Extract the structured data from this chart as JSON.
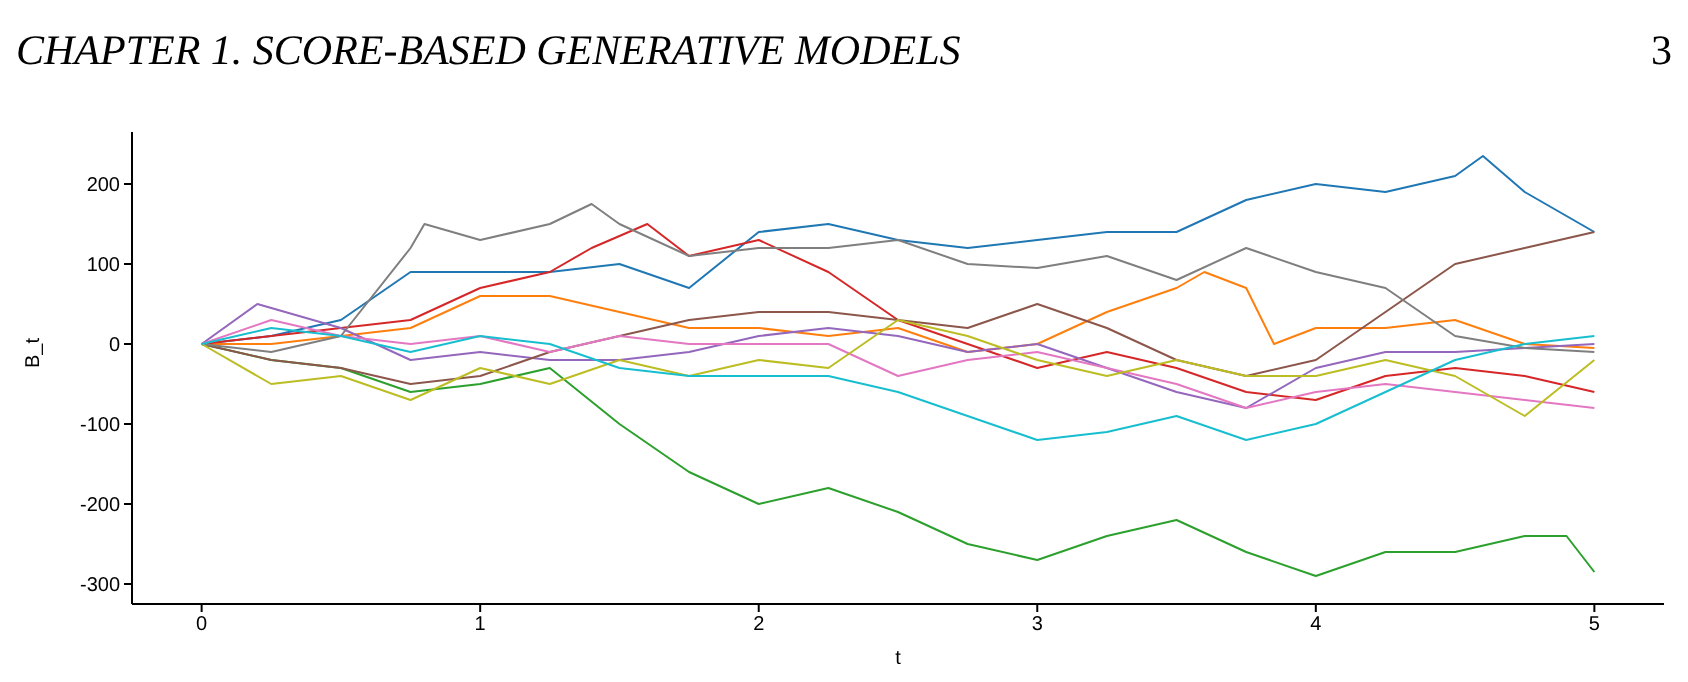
{
  "chart_data": {
    "type": "line",
    "title": "CHAPTER 1.  SCORE-BASED GENERATIVE MODELS",
    "annotations": [
      "3"
    ],
    "xlabel": "t",
    "ylabel": "B_t",
    "xlim": [
      -0.25,
      5.25
    ],
    "ylim": [
      -325,
      265
    ],
    "xticks": [
      0,
      1,
      2,
      3,
      4,
      5
    ],
    "yticks": [
      -300,
      -200,
      -100,
      0,
      100,
      200
    ],
    "series": [
      {
        "color": "#1f77b4",
        "x": [
          0,
          0.25,
          0.5,
          0.75,
          1,
          1.25,
          1.5,
          1.75,
          2,
          2.25,
          2.5,
          2.75,
          3,
          3.25,
          3.5,
          3.75,
          4,
          4.25,
          4.5,
          4.6,
          4.75,
          5
        ],
        "values": [
          0,
          10,
          30,
          90,
          90,
          90,
          100,
          70,
          140,
          150,
          130,
          120,
          130,
          140,
          140,
          180,
          200,
          190,
          210,
          235,
          190,
          140
        ]
      },
      {
        "color": "#ff7f0e",
        "x": [
          0,
          0.25,
          0.5,
          0.75,
          1,
          1.25,
          1.5,
          1.75,
          2,
          2.25,
          2.5,
          2.75,
          3,
          3.25,
          3.5,
          3.6,
          3.75,
          3.85,
          4,
          4.25,
          4.5,
          4.75,
          5
        ],
        "values": [
          0,
          0,
          10,
          20,
          60,
          60,
          40,
          20,
          20,
          10,
          20,
          -10,
          0,
          40,
          70,
          90,
          70,
          0,
          20,
          20,
          30,
          0,
          -5
        ]
      },
      {
        "color": "#2ca02c",
        "x": [
          0,
          0.25,
          0.5,
          0.75,
          1,
          1.25,
          1.5,
          1.75,
          2,
          2.25,
          2.5,
          2.75,
          3,
          3.25,
          3.5,
          3.75,
          4,
          4.25,
          4.5,
          4.75,
          4.9,
          5
        ],
        "values": [
          0,
          -20,
          -30,
          -60,
          -50,
          -30,
          -100,
          -160,
          -200,
          -180,
          -210,
          -250,
          -270,
          -240,
          -220,
          -260,
          -290,
          -260,
          -260,
          -240,
          -240,
          -285
        ]
      },
      {
        "color": "#d62728",
        "x": [
          0,
          0.25,
          0.5,
          0.75,
          1,
          1.25,
          1.4,
          1.6,
          1.75,
          2,
          2.25,
          2.5,
          2.75,
          3,
          3.25,
          3.5,
          3.75,
          4,
          4.25,
          4.5,
          4.75,
          5
        ],
        "values": [
          0,
          10,
          20,
          30,
          70,
          90,
          120,
          150,
          110,
          130,
          90,
          30,
          0,
          -30,
          -10,
          -30,
          -60,
          -70,
          -40,
          -30,
          -40,
          -60
        ]
      },
      {
        "color": "#9467bd",
        "x": [
          0,
          0.2,
          0.5,
          0.75,
          1,
          1.25,
          1.5,
          1.75,
          2,
          2.25,
          2.5,
          2.75,
          3,
          3.25,
          3.5,
          3.75,
          4,
          4.25,
          4.5,
          4.75,
          5
        ],
        "values": [
          0,
          50,
          20,
          -20,
          -10,
          -20,
          -20,
          -10,
          10,
          20,
          10,
          -10,
          0,
          -30,
          -60,
          -80,
          -30,
          -10,
          -10,
          -5,
          0
        ]
      },
      {
        "color": "#8c564b",
        "x": [
          0,
          0.25,
          0.5,
          0.75,
          1,
          1.25,
          1.5,
          1.75,
          2,
          2.25,
          2.5,
          2.75,
          3,
          3.25,
          3.5,
          3.75,
          4,
          4.25,
          4.5,
          4.75,
          5
        ],
        "values": [
          0,
          -20,
          -30,
          -50,
          -40,
          -10,
          10,
          30,
          40,
          40,
          30,
          20,
          50,
          20,
          -20,
          -40,
          -20,
          40,
          100,
          120,
          140
        ]
      },
      {
        "color": "#e377c2",
        "x": [
          0,
          0.25,
          0.5,
          0.75,
          1,
          1.25,
          1.5,
          1.75,
          2,
          2.25,
          2.5,
          2.75,
          3,
          3.25,
          3.5,
          3.75,
          4,
          4.25,
          4.5,
          4.75,
          5
        ],
        "values": [
          0,
          30,
          10,
          0,
          10,
          -10,
          10,
          0,
          0,
          0,
          -40,
          -20,
          -10,
          -30,
          -50,
          -80,
          -60,
          -50,
          -60,
          -70,
          -80
        ]
      },
      {
        "color": "#7f7f7f",
        "x": [
          0,
          0.25,
          0.5,
          0.75,
          0.8,
          1,
          1.25,
          1.4,
          1.5,
          1.75,
          2,
          2.25,
          2.5,
          2.75,
          3,
          3.25,
          3.5,
          3.75,
          4,
          4.25,
          4.5,
          4.75,
          5
        ],
        "values": [
          0,
          -10,
          10,
          120,
          150,
          130,
          150,
          175,
          150,
          110,
          120,
          120,
          130,
          100,
          95,
          110,
          80,
          120,
          90,
          70,
          10,
          -5,
          -10
        ]
      },
      {
        "color": "#bcbd22",
        "x": [
          0,
          0.25,
          0.5,
          0.75,
          1,
          1.25,
          1.5,
          1.75,
          2,
          2.25,
          2.5,
          2.75,
          3,
          3.25,
          3.5,
          3.75,
          4,
          4.25,
          4.5,
          4.75,
          5
        ],
        "values": [
          0,
          -50,
          -40,
          -70,
          -30,
          -50,
          -20,
          -40,
          -20,
          -30,
          30,
          10,
          -20,
          -40,
          -20,
          -40,
          -40,
          -20,
          -40,
          -90,
          -20
        ]
      },
      {
        "color": "#17becf",
        "x": [
          0,
          0.25,
          0.5,
          0.75,
          1,
          1.25,
          1.5,
          1.75,
          2,
          2.25,
          2.5,
          2.75,
          3,
          3.25,
          3.5,
          3.75,
          4,
          4.25,
          4.5,
          4.75,
          5
        ],
        "values": [
          0,
          20,
          10,
          -10,
          10,
          0,
          -30,
          -40,
          -40,
          -40,
          -60,
          -90,
          -120,
          -110,
          -90,
          -120,
          -100,
          -60,
          -20,
          0,
          10
        ]
      }
    ]
  }
}
